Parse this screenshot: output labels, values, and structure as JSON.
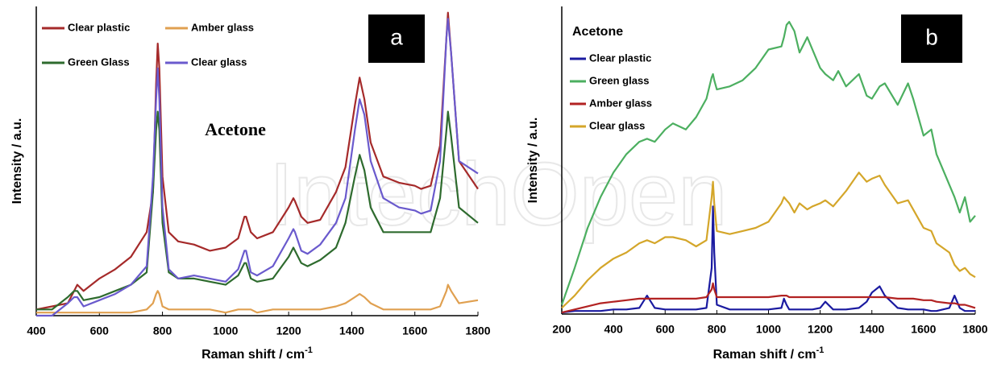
{
  "watermark": "IntechOpen",
  "chart_data": [
    {
      "type": "line",
      "panel_label": "a",
      "title": "Acetone",
      "title_font": "serif",
      "x_label": "Raman shift / cm",
      "x_label_sup": "-1",
      "y_label": "Intensity / a.u.",
      "xlim": [
        400,
        1800
      ],
      "xticks": [
        400,
        600,
        800,
        1000,
        1200,
        1400,
        1600,
        1800
      ],
      "ylim": [
        0,
        100
      ],
      "legend": "top-left",
      "x": [
        400,
        450,
        500,
        520,
        530,
        550,
        600,
        650,
        700,
        750,
        770,
        780,
        785,
        790,
        800,
        820,
        850,
        900,
        950,
        1000,
        1040,
        1060,
        1065,
        1080,
        1100,
        1150,
        1200,
        1215,
        1220,
        1240,
        1260,
        1300,
        1350,
        1380,
        1410,
        1425,
        1440,
        1460,
        1500,
        1550,
        1600,
        1620,
        1650,
        1680,
        1700,
        1705,
        1715,
        1740,
        1800
      ],
      "series": [
        {
          "name": "Clear plastic",
          "color": "#a52a2a",
          "values": [
            2,
            3,
            4,
            8,
            10,
            8,
            12,
            15,
            19,
            27,
            40,
            75,
            88,
            80,
            45,
            27,
            24,
            23,
            21,
            22,
            25,
            32,
            32,
            27,
            25,
            27,
            35,
            38,
            37,
            32,
            30,
            31,
            40,
            48,
            68,
            77,
            70,
            56,
            45,
            43,
            42,
            41,
            42,
            55,
            90,
            98,
            85,
            50,
            41
          ]
        },
        {
          "name": "Amber glass",
          "color": "#e0a050",
          "values": [
            1,
            1,
            1,
            1,
            1,
            1,
            1,
            1,
            1,
            2,
            4,
            7,
            8,
            7,
            3,
            2,
            2,
            2,
            2,
            1,
            2,
            2,
            2,
            2,
            1,
            2,
            2,
            2,
            2,
            2,
            2,
            2,
            3,
            4,
            6,
            7,
            6,
            4,
            2,
            2,
            2,
            2,
            2,
            3,
            8,
            10,
            8,
            4,
            5
          ]
        },
        {
          "name": "Green Glass",
          "color": "#2e6b2e",
          "values": [
            2,
            2,
            6,
            8,
            8,
            5,
            6,
            8,
            10,
            14,
            40,
            60,
            66,
            60,
            30,
            14,
            12,
            12,
            11,
            10,
            13,
            17,
            17,
            12,
            11,
            12,
            19,
            22,
            21,
            17,
            16,
            18,
            22,
            30,
            45,
            52,
            47,
            35,
            27,
            27,
            27,
            27,
            27,
            38,
            60,
            66,
            58,
            35,
            30
          ]
        },
        {
          "name": "Clear glass",
          "color": "#6a5acd",
          "values": [
            0,
            0,
            4,
            6,
            6,
            3,
            5,
            7,
            10,
            16,
            45,
            70,
            80,
            70,
            35,
            15,
            12,
            13,
            12,
            11,
            15,
            21,
            21,
            14,
            13,
            16,
            25,
            28,
            27,
            21,
            20,
            23,
            30,
            38,
            60,
            70,
            65,
            50,
            38,
            35,
            34,
            33,
            34,
            50,
            90,
            96,
            85,
            50,
            46
          ]
        }
      ]
    },
    {
      "type": "line",
      "panel_label": "b",
      "title": "Acetone",
      "title_font": "sans",
      "x_label": "Raman shift / cm",
      "x_label_sup": "-1",
      "y_label": "Intensity / a.u.",
      "xlim": [
        200,
        1800
      ],
      "xticks": [
        200,
        400,
        600,
        800,
        1000,
        1200,
        1400,
        1600,
        1800
      ],
      "ylim": [
        0,
        100
      ],
      "legend": "top-left",
      "x": [
        200,
        250,
        300,
        350,
        400,
        450,
        500,
        530,
        560,
        600,
        630,
        680,
        720,
        760,
        780,
        785,
        790,
        800,
        850,
        900,
        950,
        1000,
        1050,
        1060,
        1070,
        1080,
        1100,
        1120,
        1150,
        1170,
        1200,
        1220,
        1250,
        1270,
        1300,
        1350,
        1380,
        1400,
        1430,
        1450,
        1500,
        1540,
        1560,
        1600,
        1630,
        1650,
        1700,
        1720,
        1740,
        1760,
        1780,
        1800
      ],
      "series": [
        {
          "name": "Clear plastic",
          "color": "#1a1aa0",
          "values": [
            0.5,
            1,
            1,
            1,
            1.5,
            1.5,
            2,
            6,
            2,
            1.5,
            1.5,
            1.5,
            1.5,
            2,
            15,
            35,
            20,
            3,
            1.5,
            1.5,
            1.5,
            1.5,
            2,
            5,
            3,
            1.5,
            1.5,
            1.5,
            1.5,
            1.5,
            2,
            4,
            1.5,
            1.5,
            1.5,
            2,
            4,
            7,
            9,
            6,
            2,
            1.5,
            1.5,
            1.5,
            1,
            1,
            2,
            6,
            2,
            1,
            1,
            1
          ]
        },
        {
          "name": "Green glass",
          "color": "#4caf60",
          "values": [
            3,
            15,
            28,
            38,
            46,
            52,
            56,
            57,
            56,
            60,
            62,
            60,
            64,
            70,
            77,
            78,
            76,
            73,
            74,
            76,
            80,
            86,
            87,
            90,
            94,
            95,
            92,
            85,
            90,
            86,
            80,
            78,
            76,
            79,
            74,
            78,
            71,
            70,
            74,
            75,
            68,
            75,
            70,
            58,
            60,
            52,
            42,
            38,
            33,
            38,
            30,
            32
          ]
        },
        {
          "name": "Amber glass",
          "color": "#b22222",
          "values": [
            0.5,
            1.5,
            2.5,
            3.5,
            4,
            4.5,
            5,
            5,
            5,
            5,
            5,
            5,
            5,
            5.5,
            8,
            10,
            8,
            5.5,
            5.5,
            5.5,
            5.5,
            5.5,
            6,
            6,
            6,
            5.5,
            5.5,
            5.5,
            5.5,
            5.5,
            5.5,
            5.5,
            5.5,
            5.5,
            5.5,
            5.5,
            5.5,
            5.5,
            5.5,
            5.5,
            5,
            5,
            5,
            4.5,
            4.5,
            4,
            3.5,
            3.5,
            3,
            3,
            2.5,
            2
          ]
        },
        {
          "name": "Clear glass",
          "color": "#d4a62a",
          "values": [
            2,
            6,
            11,
            15,
            18,
            20,
            23,
            24,
            23,
            25,
            25,
            24,
            22,
            24,
            38,
            43,
            36,
            27,
            26,
            27,
            28,
            30,
            36,
            38,
            37,
            36,
            33,
            36,
            34,
            35,
            36,
            37,
            35,
            37,
            40,
            46,
            43,
            44,
            45,
            42,
            36,
            37,
            34,
            28,
            27,
            23,
            20,
            16,
            14,
            15,
            13,
            12
          ]
        }
      ]
    }
  ]
}
